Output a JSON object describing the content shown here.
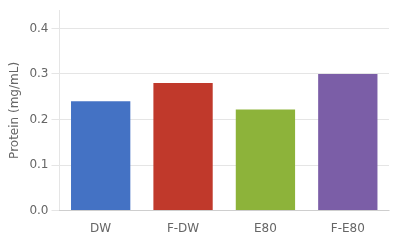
{
  "chart_data": {
    "type": "bar",
    "categories": [
      "DW",
      "F-DW",
      "E80",
      "F-E80"
    ],
    "values": [
      0.24,
      0.28,
      0.222,
      0.3
    ],
    "colors": [
      "#4472c4",
      "#c0392b",
      "#8db33a",
      "#7b5ea7"
    ],
    "y_label": "Protein (mg/mL)",
    "ylim": [
      0.0,
      0.44
    ],
    "yticks": [
      {
        "value": 0.0,
        "label": "0.0"
      },
      0.1,
      0.2,
      0.3,
      0.4
    ],
    "grid": true
  }
}
